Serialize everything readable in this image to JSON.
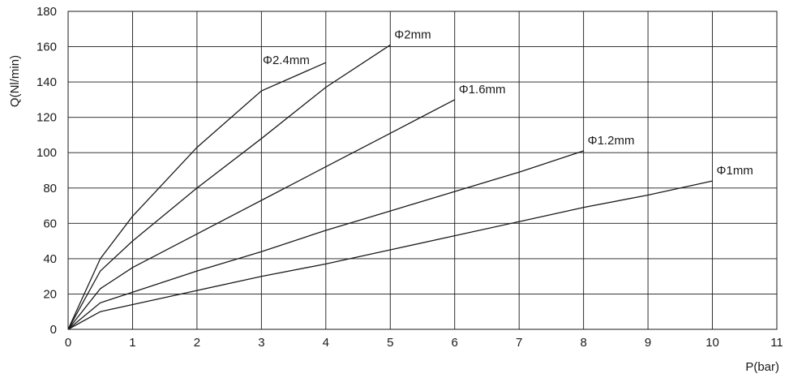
{
  "chart_data": {
    "type": "line",
    "title": "",
    "xlabel": "P(bar)",
    "ylabel": "Q(Nl/min)",
    "xlim": [
      0,
      11
    ],
    "ylim": [
      0,
      180
    ],
    "xticks": [
      "0",
      "1",
      "2",
      "3",
      "4",
      "5",
      "6",
      "7",
      "8",
      "9",
      "10",
      "11"
    ],
    "yticks": [
      "0",
      "20",
      "40",
      "60",
      "80",
      "100",
      "120",
      "140",
      "160",
      "180"
    ],
    "grid": true,
    "legend": "inline labels at line ends",
    "series": [
      {
        "name": "Φ2.4mm",
        "x": [
          0,
          0.5,
          1,
          2,
          3,
          4
        ],
        "y": [
          0,
          40,
          64,
          103,
          135,
          151
        ]
      },
      {
        "name": "Φ2mm",
        "x": [
          0,
          0.5,
          1,
          2,
          3,
          4,
          5
        ],
        "y": [
          0,
          33,
          50,
          80,
          108,
          137,
          161
        ]
      },
      {
        "name": "Φ1.6mm",
        "x": [
          0,
          0.5,
          1,
          2,
          3,
          4,
          5,
          6
        ],
        "y": [
          0,
          23,
          35,
          54,
          73,
          92,
          111,
          130
        ]
      },
      {
        "name": "Φ1.2mm",
        "x": [
          0,
          0.5,
          1,
          2,
          3,
          4,
          5,
          6,
          7,
          8
        ],
        "y": [
          0,
          15,
          21,
          33,
          44,
          56,
          67,
          78,
          89,
          101
        ]
      },
      {
        "name": "Φ1mm",
        "x": [
          0,
          0.5,
          1,
          2,
          3,
          4,
          5,
          6,
          7,
          8,
          9,
          10
        ],
        "y": [
          0,
          10,
          14,
          22,
          30,
          37,
          45,
          53,
          61,
          69,
          76,
          84
        ]
      }
    ]
  }
}
